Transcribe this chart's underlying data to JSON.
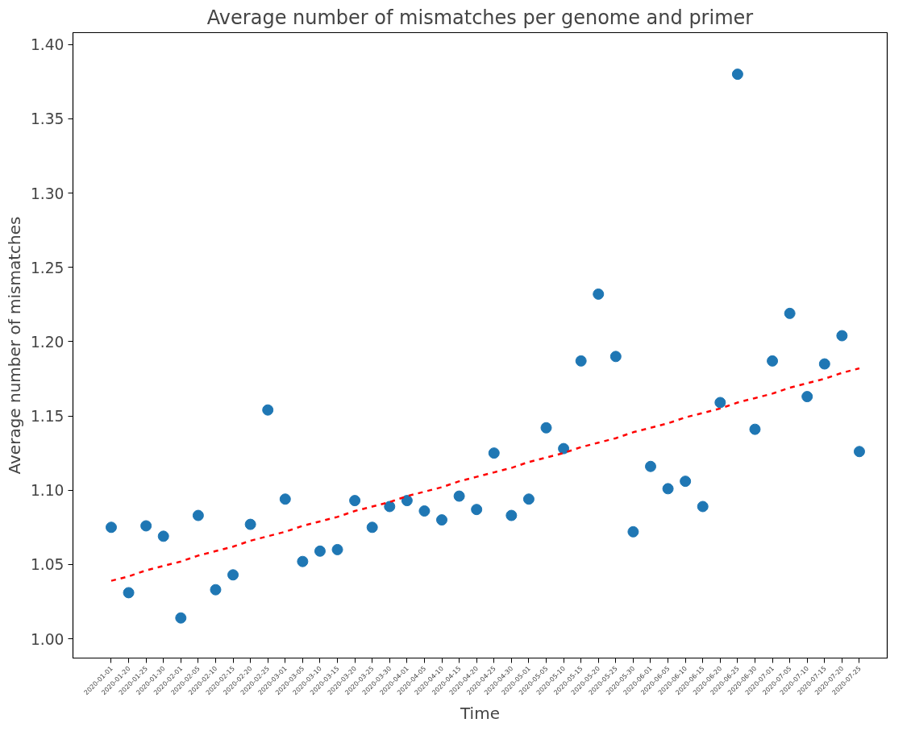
{
  "chart_data": {
    "type": "scatter",
    "title": "Average number of mismatches per genome and primer",
    "xlabel": "Time",
    "ylabel": "Average number of mismatches",
    "categories": [
      "2020-01-01",
      "2020-01-20",
      "2020-01-25",
      "2020-01-30",
      "2020-02-01",
      "2020-02-05",
      "2020-02-10",
      "2020-02-15",
      "2020-02-20",
      "2020-02-25",
      "2020-03-01",
      "2020-03-05",
      "2020-03-10",
      "2020-03-15",
      "2020-03-20",
      "2020-03-25",
      "2020-03-30",
      "2020-04-01",
      "2020-04-05",
      "2020-04-10",
      "2020-04-15",
      "2020-04-20",
      "2020-04-25",
      "2020-04-30",
      "2020-05-01",
      "2020-05-05",
      "2020-05-10",
      "2020-05-15",
      "2020-05-20",
      "2020-05-25",
      "2020-05-30",
      "2020-06-01",
      "2020-06-05",
      "2020-06-10",
      "2020-06-15",
      "2020-06-20",
      "2020-06-25",
      "2020-06-30",
      "2020-07-01",
      "2020-07-05",
      "2020-07-10",
      "2020-07-15",
      "2020-07-20",
      "2020-07-25"
    ],
    "series": [
      {
        "color": "#1f77b4",
        "marker": "circle",
        "values": [
          1.075,
          1.031,
          1.076,
          1.069,
          1.014,
          1.083,
          1.033,
          1.043,
          1.077,
          1.154,
          1.094,
          1.052,
          1.059,
          1.06,
          1.093,
          1.075,
          1.089,
          1.093,
          1.086,
          1.08,
          1.096,
          1.087,
          1.125,
          1.083,
          1.094,
          1.142,
          1.128,
          1.187,
          1.232,
          1.19,
          1.072,
          1.116,
          1.101,
          1.106,
          1.089,
          1.159,
          1.38,
          1.141,
          1.187,
          1.219,
          1.163,
          1.185,
          1.204,
          1.126
        ]
      },
      {
        "type": "line",
        "color": "#ff0000",
        "line_style": "dashed",
        "values": [
          1.039,
          1.042,
          1.046,
          1.049,
          1.052,
          1.056,
          1.059,
          1.062,
          1.066,
          1.069,
          1.072,
          1.076,
          1.079,
          1.082,
          1.086,
          1.089,
          1.092,
          1.096,
          1.099,
          1.102,
          1.106,
          1.109,
          1.112,
          1.115,
          1.119,
          1.122,
          1.125,
          1.129,
          1.132,
          1.135,
          1.139,
          1.142,
          1.145,
          1.149,
          1.152,
          1.155,
          1.159,
          1.162,
          1.165,
          1.169,
          1.172,
          1.175,
          1.179,
          1.182
        ]
      }
    ],
    "ylim": [
      0.987,
      1.408
    ],
    "yticks": [
      {
        "value": 1.0,
        "label": "1.00"
      },
      1.05,
      {
        "value": 1.1,
        "label": "1.10"
      },
      1.15,
      {
        "value": 1.2,
        "label": "1.20"
      },
      1.25,
      {
        "value": 1.3,
        "label": "1.30"
      },
      1.35,
      {
        "value": 1.4,
        "label": "1.40"
      }
    ],
    "grid": false
  }
}
